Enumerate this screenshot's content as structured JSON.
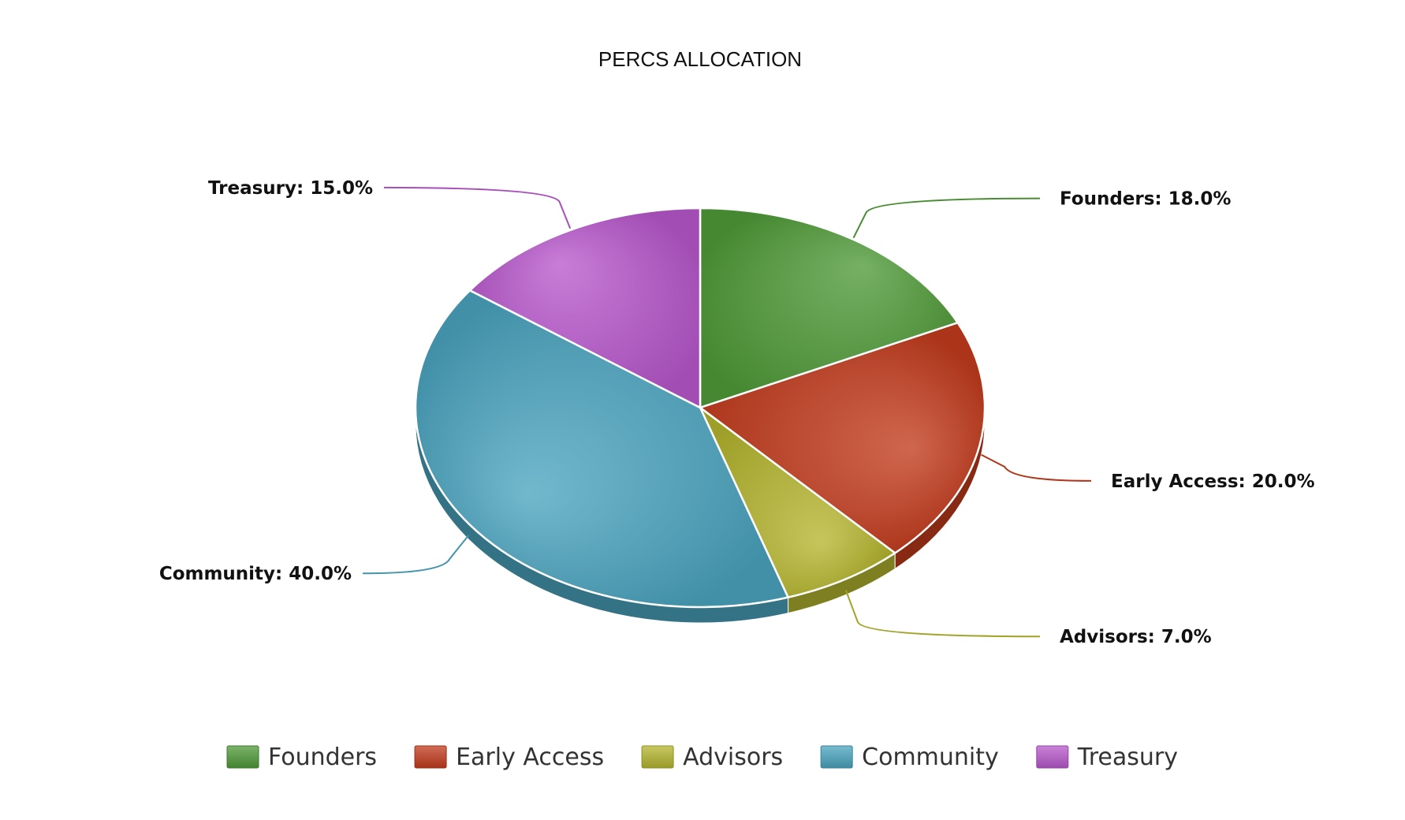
{
  "chart_data": {
    "type": "pie",
    "title": "PERCS ALLOCATION",
    "slices": [
      {
        "label": "Founders",
        "value": 18.0,
        "display": "Founders: 18.0%",
        "color": "#4f9a38"
      },
      {
        "label": "Early Access",
        "value": 20.0,
        "display": "Early Access: 20.0%",
        "color": "#c23b1c"
      },
      {
        "label": "Advisors",
        "value": 7.0,
        "display": "Advisors: 7.0%",
        "color": "#b4b52e"
      },
      {
        "label": "Community",
        "value": 40.0,
        "display": "Community: 40.0%",
        "color": "#4aa4bf"
      },
      {
        "label": "Treasury",
        "value": 15.0,
        "display": "Treasury: 15.0%",
        "color": "#b858cc"
      }
    ],
    "legend_position": "bottom",
    "style": "3d-tilted"
  }
}
